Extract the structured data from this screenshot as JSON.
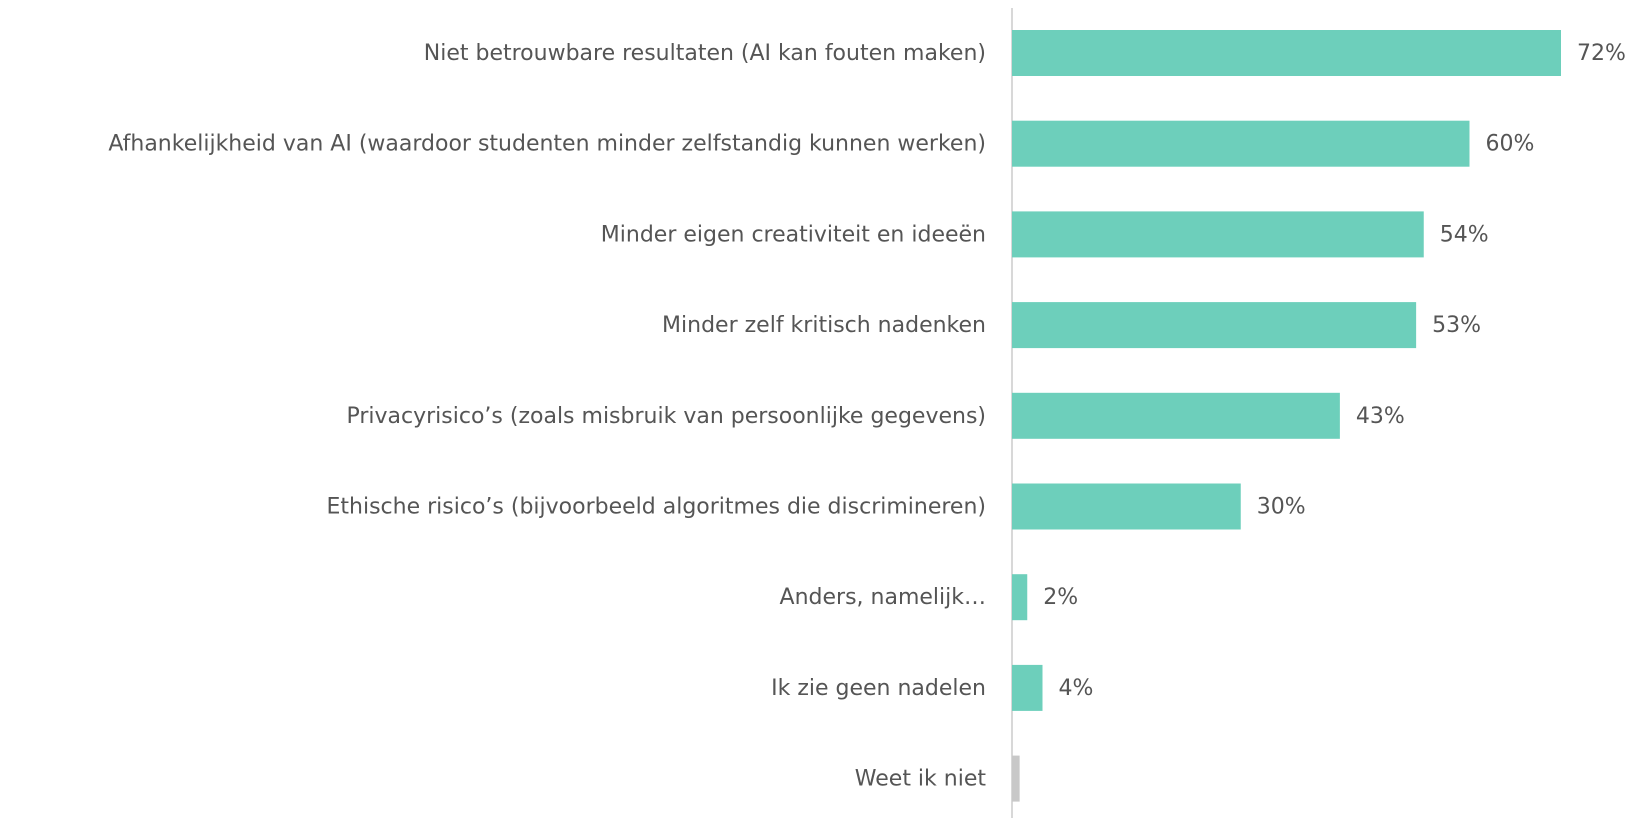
{
  "chart_data": {
    "type": "hbar",
    "categories": [
      "Niet betrouwbare resultaten (AI kan fouten maken)",
      "Afhankelijkheid van AI (waardoor studenten minder zelfstandig kunnen werken)",
      "Minder eigen creativiteit en ideeën",
      "Minder zelf kritisch nadenken",
      "Privacyrisico’s (zoals misbruik van persoonlijke gegevens)",
      "Ethische risico’s (bijvoorbeeld algoritmes die discrimineren)",
      "Anders, namelijk…",
      "Ik zie geen nadelen",
      "Weet ik niet"
    ],
    "values": [
      72,
      60,
      54,
      53,
      43,
      30,
      2,
      4,
      1
    ],
    "value_labels": [
      "72%",
      "60%",
      "54%",
      "53%",
      "43%",
      "30%",
      "2%",
      "4%",
      null
    ],
    "colors": [
      "#6dcfbb",
      "#6dcfbb",
      "#6dcfbb",
      "#6dcfbb",
      "#6dcfbb",
      "#6dcfbb",
      "#6dcfbb",
      "#6dcfbb",
      "#c8c8c8"
    ],
    "xlim": [
      0,
      80
    ]
  }
}
